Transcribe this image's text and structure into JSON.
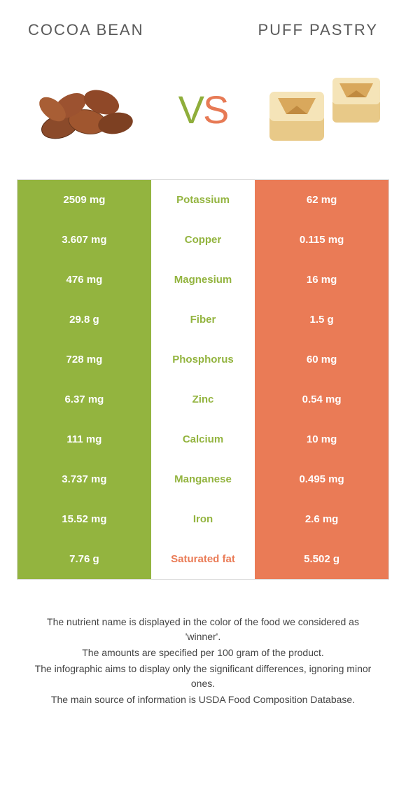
{
  "header": {
    "left": "Cocoa bean",
    "right": "Puff pastry"
  },
  "vs": {
    "v": "V",
    "s": "S"
  },
  "colors": {
    "left_bg": "#93b43f",
    "right_bg": "#ea7b56",
    "left_text": "#93b43f",
    "right_text": "#ea7b56"
  },
  "rows": [
    {
      "left": "2509 mg",
      "label": "Potassium",
      "right": "62 mg",
      "winner": "left"
    },
    {
      "left": "3.607 mg",
      "label": "Copper",
      "right": "0.115 mg",
      "winner": "left"
    },
    {
      "left": "476 mg",
      "label": "Magnesium",
      "right": "16 mg",
      "winner": "left"
    },
    {
      "left": "29.8 g",
      "label": "Fiber",
      "right": "1.5 g",
      "winner": "left"
    },
    {
      "left": "728 mg",
      "label": "Phosphorus",
      "right": "60 mg",
      "winner": "left"
    },
    {
      "left": "6.37 mg",
      "label": "Zinc",
      "right": "0.54 mg",
      "winner": "left"
    },
    {
      "left": "111 mg",
      "label": "Calcium",
      "right": "10 mg",
      "winner": "left"
    },
    {
      "left": "3.737 mg",
      "label": "Manganese",
      "right": "0.495 mg",
      "winner": "left"
    },
    {
      "left": "15.52 mg",
      "label": "Iron",
      "right": "2.6 mg",
      "winner": "left"
    },
    {
      "left": "7.76 g",
      "label": "Saturated fat",
      "right": "5.502 g",
      "winner": "right"
    }
  ],
  "footnotes": [
    "The nutrient name is displayed in the color of the food we considered as 'winner'.",
    "The amounts are specified per 100 gram of the product.",
    "The infographic aims to display only the significant differences, ignoring minor ones.",
    "The main source of information is USDA Food Composition Database."
  ]
}
